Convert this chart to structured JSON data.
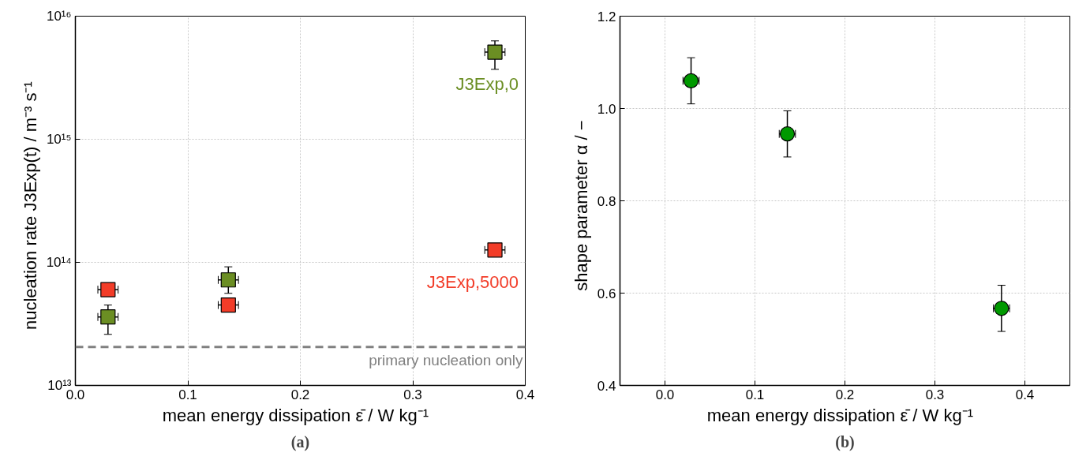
{
  "chart_data": [
    {
      "type": "scatter",
      "title": "(a)",
      "xlabel": "mean energy dissipation ε̄  /  W kg⁻¹",
      "ylabel": "nucleation rate J3Exp(t)  /  m⁻³ s⁻¹",
      "log": "y",
      "grid": true,
      "marker": "square",
      "xlim": [
        0.0,
        0.4
      ],
      "xticks": [
        {
          "value": 0,
          "label": "0.0"
        },
        0.1,
        0.2,
        0.3,
        0.4
      ],
      "ylim": [
        10000000000000.0,
        1e+16
      ],
      "yticks": [
        {
          "value": 10000000000000.0,
          "label": "10¹³"
        },
        {
          "value": 100000000000000.0,
          "label": "10¹⁴"
        },
        {
          "value": 1000000000000000.0,
          "label": "10¹⁵"
        },
        {
          "value": 1e+16,
          "label": "10¹⁶"
        }
      ],
      "series": [
        {
          "name": "J3Exp,0",
          "color": "#6b8e23",
          "x": [
            0.029,
            0.136,
            0.373
          ],
          "values": [
            36000000000000.0,
            72000000000000.0,
            5100000000000000.0
          ],
          "errors": [
            [
              26000000000000.0,
              45000000000000.0
            ],
            [
              56000000000000.0,
              92000000000000.0
            ],
            [
              3700000000000000.0,
              6300000000000000.0
            ]
          ],
          "xerrors": [
            0.009,
            0.009,
            0.009
          ]
        },
        {
          "name": "J3Exp,5000",
          "color": "#f23c28",
          "x": [
            0.029,
            0.136,
            0.373
          ],
          "values": [
            60000000000000.0,
            45000000000000.0,
            126000000000000.0
          ],
          "xerrors": [
            0.009,
            0.009,
            0.009
          ]
        }
      ],
      "ref_lines": [
        {
          "axis": "y",
          "value": 20500000000000.0,
          "label": "primary nucleation only",
          "color": "#808080",
          "line_style": "dashed"
        }
      ]
    },
    {
      "type": "scatter",
      "title": "(b)",
      "xlabel": "mean energy dissipation ε̄  /  W kg⁻¹",
      "ylabel": "shape parameter α  /  −",
      "grid": true,
      "marker": "circle",
      "xlim": [
        -0.05,
        0.45
      ],
      "xticks": [
        {
          "value": 0,
          "label": "0.0"
        },
        0.1,
        0.2,
        0.3,
        0.4
      ],
      "ylim": [
        0.4,
        1.2
      ],
      "yticks": [
        0.4,
        0.6,
        0.8,
        {
          "value": 1.0,
          "label": "1.0"
        },
        1.2
      ],
      "series": [
        {
          "color": "#009900",
          "x": [
            0.029,
            0.136,
            0.374
          ],
          "values": [
            1.06,
            0.945,
            0.567
          ],
          "errors": [
            0.05,
            0.05,
            0.05
          ],
          "xerrors": [
            0.009,
            0.009,
            0.009
          ]
        }
      ]
    }
  ]
}
